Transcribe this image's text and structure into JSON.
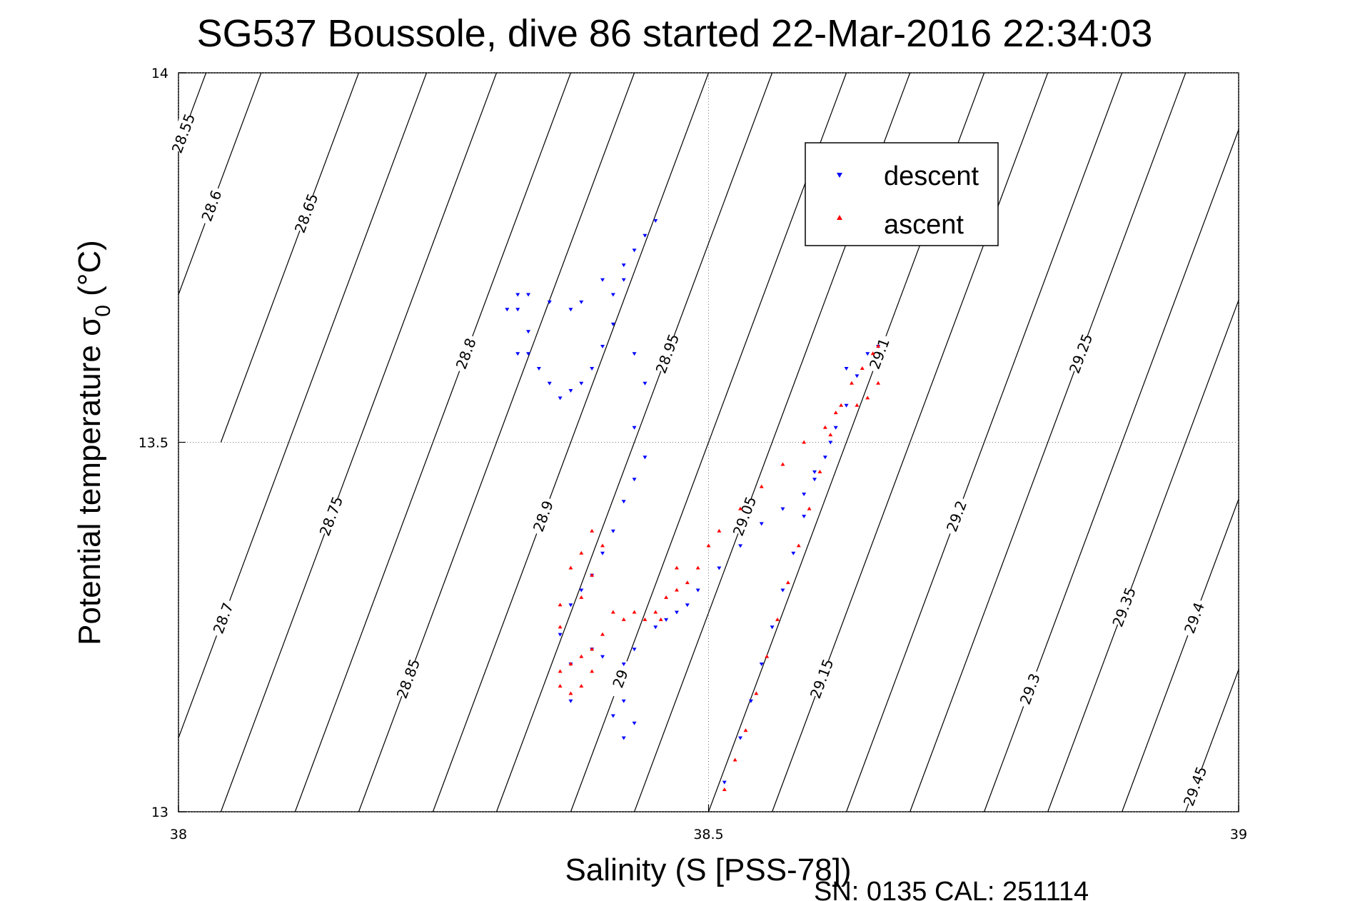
{
  "chart_data": {
    "type": "scatter",
    "title": "SG537 Boussole, dive 86 started 22-Mar-2016 22:34:03",
    "xlabel": "Salinity (S [PSS-78])",
    "ylabel_main": "Potential temperature ",
    "ylabel_sigma": "σ",
    "ylabel_sub": "0",
    "ylabel_unit": " (°C)",
    "xlim": [
      38,
      39
    ],
    "ylim": [
      13,
      14
    ],
    "xticks": [
      38,
      38.5,
      39
    ],
    "xtick_labels": [
      "38",
      "38.5",
      "39"
    ],
    "yticks": [
      13,
      13.5,
      14
    ],
    "ytick_labels": [
      "13",
      "13.5",
      "14"
    ],
    "grid": "dotted",
    "legend_position": "top-right",
    "footer": "SN: 0135  CAL: 251114",
    "series": [
      {
        "name": "descent",
        "color": "#0000ff",
        "marker": "triangle-down",
        "points": [
          [
            38.45,
            13.8
          ],
          [
            38.44,
            13.78
          ],
          [
            38.43,
            13.76
          ],
          [
            38.42,
            13.72
          ],
          [
            38.41,
            13.7
          ],
          [
            38.41,
            13.66
          ],
          [
            38.4,
            13.63
          ],
          [
            38.39,
            13.6
          ],
          [
            38.38,
            13.58
          ],
          [
            38.37,
            13.57
          ],
          [
            38.36,
            13.56
          ],
          [
            38.35,
            13.58
          ],
          [
            38.34,
            13.6
          ],
          [
            38.33,
            13.62
          ],
          [
            38.32,
            13.62
          ],
          [
            38.33,
            13.65
          ],
          [
            38.32,
            13.68
          ],
          [
            38.31,
            13.68
          ],
          [
            38.32,
            13.7
          ],
          [
            38.33,
            13.7
          ],
          [
            38.35,
            13.69
          ],
          [
            38.37,
            13.68
          ],
          [
            38.38,
            13.69
          ],
          [
            38.4,
            13.72
          ],
          [
            38.42,
            13.74
          ],
          [
            38.43,
            13.62
          ],
          [
            38.44,
            13.58
          ],
          [
            38.43,
            13.52
          ],
          [
            38.44,
            13.48
          ],
          [
            38.43,
            13.45
          ],
          [
            38.42,
            13.42
          ],
          [
            38.41,
            13.38
          ],
          [
            38.4,
            13.35
          ],
          [
            38.39,
            13.32
          ],
          [
            38.38,
            13.3
          ],
          [
            38.37,
            13.28
          ],
          [
            38.36,
            13.24
          ],
          [
            38.37,
            13.2
          ],
          [
            38.39,
            13.22
          ],
          [
            38.4,
            13.21
          ],
          [
            38.42,
            13.2
          ],
          [
            38.43,
            13.22
          ],
          [
            38.45,
            13.25
          ],
          [
            38.46,
            13.26
          ],
          [
            38.47,
            13.27
          ],
          [
            38.48,
            13.28
          ],
          [
            38.49,
            13.3
          ],
          [
            38.51,
            13.33
          ],
          [
            38.53,
            13.36
          ],
          [
            38.55,
            13.39
          ],
          [
            38.57,
            13.41
          ],
          [
            38.59,
            13.43
          ],
          [
            38.6,
            13.46
          ],
          [
            38.61,
            13.48
          ],
          [
            38.62,
            13.52
          ],
          [
            38.63,
            13.55
          ],
          [
            38.64,
            13.59
          ],
          [
            38.65,
            13.62
          ],
          [
            38.66,
            13.63
          ],
          [
            38.63,
            13.6
          ],
          [
            38.615,
            13.5
          ],
          [
            38.6,
            13.45
          ],
          [
            38.59,
            13.4
          ],
          [
            38.58,
            13.35
          ],
          [
            38.57,
            13.3
          ],
          [
            38.56,
            13.25
          ],
          [
            38.55,
            13.2
          ],
          [
            38.54,
            13.15
          ],
          [
            38.53,
            13.1
          ],
          [
            38.515,
            13.04
          ],
          [
            38.42,
            13.1
          ],
          [
            38.41,
            13.13
          ],
          [
            38.43,
            13.12
          ],
          [
            38.42,
            13.15
          ],
          [
            38.37,
            13.15
          ]
        ]
      },
      {
        "name": "ascent",
        "color": "#ff0000",
        "marker": "triangle-up",
        "points": [
          [
            38.515,
            13.03
          ],
          [
            38.525,
            13.07
          ],
          [
            38.535,
            13.11
          ],
          [
            38.545,
            13.16
          ],
          [
            38.555,
            13.21
          ],
          [
            38.565,
            13.26
          ],
          [
            38.575,
            13.31
          ],
          [
            38.585,
            13.36
          ],
          [
            38.595,
            13.41
          ],
          [
            38.605,
            13.46
          ],
          [
            38.615,
            13.51
          ],
          [
            38.625,
            13.55
          ],
          [
            38.635,
            13.58
          ],
          [
            38.645,
            13.6
          ],
          [
            38.655,
            13.62
          ],
          [
            38.66,
            13.63
          ],
          [
            38.66,
            13.58
          ],
          [
            38.65,
            13.56
          ],
          [
            38.64,
            13.55
          ],
          [
            38.62,
            13.54
          ],
          [
            38.61,
            13.52
          ],
          [
            38.59,
            13.5
          ],
          [
            38.57,
            13.47
          ],
          [
            38.55,
            13.44
          ],
          [
            38.53,
            13.41
          ],
          [
            38.51,
            13.38
          ],
          [
            38.5,
            13.36
          ],
          [
            38.49,
            13.33
          ],
          [
            38.48,
            13.31
          ],
          [
            38.47,
            13.3
          ],
          [
            38.46,
            13.29
          ],
          [
            38.45,
            13.27
          ],
          [
            38.44,
            13.26
          ],
          [
            38.43,
            13.27
          ],
          [
            38.42,
            13.26
          ],
          [
            38.41,
            13.27
          ],
          [
            38.4,
            13.24
          ],
          [
            38.39,
            13.22
          ],
          [
            38.38,
            13.21
          ],
          [
            38.37,
            13.2
          ],
          [
            38.36,
            13.19
          ],
          [
            38.36,
            13.17
          ],
          [
            38.37,
            13.16
          ],
          [
            38.38,
            13.17
          ],
          [
            38.39,
            13.19
          ],
          [
            38.38,
            13.29
          ],
          [
            38.39,
            13.32
          ],
          [
            38.4,
            13.36
          ],
          [
            38.39,
            13.38
          ],
          [
            38.38,
            13.35
          ],
          [
            38.37,
            13.33
          ],
          [
            38.36,
            13.28
          ],
          [
            38.36,
            13.25
          ],
          [
            38.47,
            13.33
          ],
          [
            38.455,
            13.26
          ]
        ]
      }
    ],
    "isopycnals": [
      {
        "label": "28.55",
        "x0": 38.0,
        "y0": 13.9
      },
      {
        "label": "28.6",
        "x0": 38.0,
        "y0": 13.7
      },
      {
        "label": "28.65",
        "x0": 38.04,
        "y0": 13.5
      },
      {
        "label": "28.7",
        "x0": 38.0,
        "y0": 13.1
      },
      {
        "label": "28.75",
        "x0": 38.04,
        "y0": 13.0
      },
      {
        "label": "28.8",
        "x0": 38.11,
        "y0": 13.0
      },
      {
        "label": "28.85",
        "x0": 38.17,
        "y0": 13.0
      },
      {
        "label": "28.9",
        "x0": 38.24,
        "y0": 13.0
      },
      {
        "label": "28.95",
        "x0": 38.3,
        "y0": 13.0
      },
      {
        "label": "29",
        "x0": 38.37,
        "y0": 13.0
      },
      {
        "label": "29.05",
        "x0": 38.43,
        "y0": 13.0
      },
      {
        "label": "29.1",
        "x0": 38.5,
        "y0": 13.0
      },
      {
        "label": "29.15",
        "x0": 38.56,
        "y0": 13.0
      },
      {
        "label": "29.2",
        "x0": 38.63,
        "y0": 13.0
      },
      {
        "label": "29.25",
        "x0": 38.69,
        "y0": 13.0
      },
      {
        "label": "29.3",
        "x0": 38.76,
        "y0": 13.0
      },
      {
        "label": "29.35",
        "x0": 38.82,
        "y0": 13.0
      },
      {
        "label": "29.4",
        "x0": 38.89,
        "y0": 13.0
      },
      {
        "label": "29.45",
        "x0": 38.95,
        "y0": 13.0
      }
    ]
  }
}
